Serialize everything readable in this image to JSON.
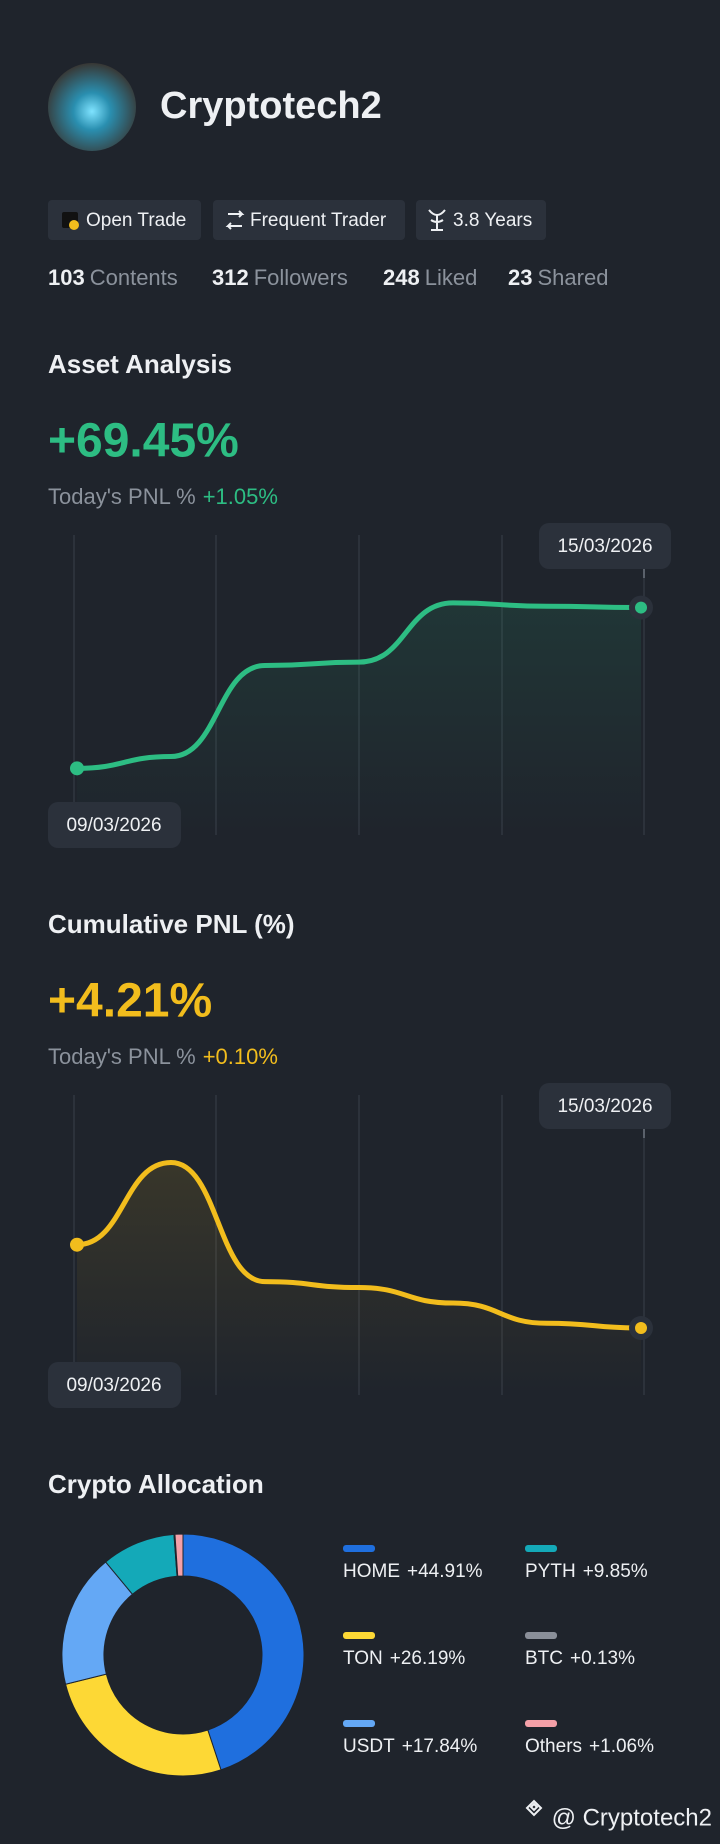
{
  "profile": {
    "name": "Cryptotech2",
    "tags": [
      "Open Trade",
      "Frequent Trader",
      "3.8 Years"
    ],
    "stats": [
      {
        "value": 103,
        "label": "Contents"
      },
      {
        "value": 312,
        "label": "Followers"
      },
      {
        "value": 248,
        "label": "Liked"
      },
      {
        "value": 23,
        "label": "Shared"
      }
    ]
  },
  "chart_data": [
    {
      "type": "line",
      "title": "Asset Analysis",
      "headline": "+69.45%",
      "subtitle": "Today's PNL %",
      "subtitle_value": "+1.05%",
      "categories": [
        "09/03/2026",
        null,
        null,
        null,
        null,
        null,
        "15/03/2026"
      ],
      "values": [
        0,
        5.1,
        44.4,
        45.9,
        71.5,
        70,
        69.45
      ],
      "color": "#2dbd83",
      "ylim": [
        -18,
        90
      ]
    },
    {
      "type": "line",
      "title": "Cumulative PNL (%)",
      "headline": "+4.21%",
      "subtitle": "Today's PNL %",
      "subtitle_value": "+0.10%",
      "categories": [
        "09/03/2026",
        null,
        null,
        null,
        null,
        null,
        "15/03/2026"
      ],
      "values": [
        7.01,
        9.77,
        5.77,
        5.57,
        5.05,
        4.37,
        4.21
      ],
      "color": "#f2bd1d",
      "ylim": [
        2.8,
        11.2
      ]
    },
    {
      "type": "pie",
      "title": "Crypto Allocation",
      "categories": [
        "HOME",
        "TON",
        "USDT",
        "PYTH",
        "BTC",
        "Others"
      ],
      "values": [
        44.91,
        26.19,
        17.84,
        9.85,
        0.13,
        1.06
      ],
      "value_labels": [
        "+44.91%",
        "+26.19%",
        "+17.84%",
        "+9.85%",
        "+0.13%",
        "+1.06%"
      ],
      "colors": [
        "#1f6fde",
        "#fdd835",
        "#64a8f5",
        "#14a9b8",
        "#8a8f99",
        "#f4a0a8"
      ]
    }
  ],
  "watermark": "@ Cryptotech2"
}
